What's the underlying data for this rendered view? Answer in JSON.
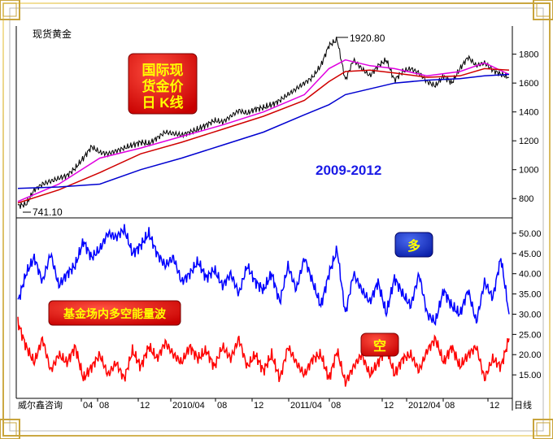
{
  "window": {
    "title": "现货黄金",
    "footer_vendor": "威尔鑫咨询",
    "period_label": "日线"
  },
  "labels": {
    "title_box": [
      "国际现",
      "货金价",
      "日 K线"
    ],
    "period_range": "2009-2012",
    "high_annotation": "1920.80",
    "low_annotation": "741.10",
    "flow_title": "基金场内多空能量波",
    "long_badge": "多",
    "short_badge": "空"
  },
  "colors": {
    "frame_gold": "#c8a43c",
    "price_line": "#000000",
    "ma_magenta": "#e000e0",
    "ma_red": "#d00000",
    "ma_blue": "#0000d0",
    "long_line": "#0000ff",
    "short_line": "#ff0000",
    "badge_red": "#ff0000",
    "badge_blue": "#1030d0",
    "range_text": "#1a1ae6"
  },
  "chart_data": [
    {
      "type": "line",
      "title": "现货黄金",
      "y_ticks": [
        "800",
        "1000",
        "1200",
        "1400",
        "1600",
        "1800"
      ],
      "x_ticks": [
        "04",
        "08",
        "12",
        "2010/04",
        "08",
        "12",
        "2011/04",
        "08",
        "12",
        "2012/04",
        "08",
        "12"
      ],
      "ylim": [
        700,
        1950
      ],
      "series": [
        {
          "name": "price",
          "x": [
            0,
            10,
            20,
            30,
            40,
            50,
            60,
            70,
            80,
            90,
            100,
            110,
            120,
            130,
            140,
            150,
            160,
            170,
            180,
            190,
            200,
            210,
            220,
            230,
            240,
            250,
            260,
            270,
            280,
            290,
            300,
            310,
            320,
            330,
            340,
            350,
            360,
            370,
            380,
            390,
            400,
            410,
            420,
            430,
            440,
            450,
            460,
            470,
            480,
            490,
            500,
            510,
            520,
            530,
            540,
            550,
            560,
            570,
            580,
            590,
            600
          ],
          "values": [
            750,
            760,
            860,
            900,
            920,
            940,
            960,
            1010,
            1080,
            1160,
            1120,
            1110,
            1130,
            1150,
            1170,
            1190,
            1180,
            1220,
            1260,
            1250,
            1240,
            1260,
            1280,
            1310,
            1340,
            1330,
            1370,
            1410,
            1390,
            1420,
            1430,
            1450,
            1480,
            1520,
            1560,
            1600,
            1640,
            1720,
            1860,
            1900,
            1620,
            1760,
            1700,
            1650,
            1720,
            1760,
            1620,
            1680,
            1700,
            1670,
            1610,
            1580,
            1650,
            1600,
            1700,
            1780,
            1720,
            1740,
            1690,
            1660,
            1640
          ]
        },
        {
          "name": "ma-short",
          "x": [
            0,
            50,
            100,
            150,
            200,
            250,
            300,
            350,
            380,
            400,
            430,
            460,
            500,
            540,
            570,
            600
          ],
          "values": [
            780,
            900,
            1080,
            1150,
            1230,
            1310,
            1400,
            1520,
            1700,
            1760,
            1720,
            1700,
            1650,
            1680,
            1740,
            1660
          ]
        },
        {
          "name": "ma-mid",
          "x": [
            0,
            50,
            100,
            150,
            200,
            250,
            300,
            350,
            380,
            400,
            430,
            460,
            500,
            540,
            570,
            600
          ],
          "values": [
            770,
            860,
            980,
            1110,
            1190,
            1280,
            1370,
            1480,
            1610,
            1680,
            1690,
            1670,
            1640,
            1650,
            1700,
            1690
          ]
        },
        {
          "name": "ma-long",
          "x": [
            0,
            50,
            100,
            150,
            200,
            250,
            300,
            350,
            380,
            400,
            430,
            460,
            500,
            540,
            570,
            600
          ],
          "values": [
            870,
            880,
            900,
            1000,
            1080,
            1170,
            1260,
            1380,
            1450,
            1520,
            1560,
            1600,
            1620,
            1630,
            1650,
            1660
          ]
        }
      ]
    },
    {
      "type": "line",
      "y_ticks": [
        "15.00",
        "20.00",
        "25.00",
        "30.00",
        "35.00",
        "40.00",
        "45.00",
        "50.00"
      ],
      "ylim": [
        10,
        53
      ],
      "series": [
        {
          "name": "多",
          "x": [
            0,
            10,
            20,
            30,
            40,
            50,
            60,
            70,
            80,
            90,
            100,
            110,
            120,
            130,
            140,
            150,
            160,
            170,
            180,
            190,
            200,
            210,
            220,
            230,
            240,
            250,
            260,
            270,
            280,
            290,
            300,
            310,
            320,
            330,
            340,
            350,
            360,
            370,
            380,
            390,
            400,
            410,
            420,
            430,
            440,
            450,
            460,
            470,
            480,
            490,
            500,
            510,
            520,
            530,
            540,
            550,
            560,
            570,
            580,
            590,
            600
          ],
          "values": [
            33,
            40,
            44,
            38,
            45,
            37,
            40,
            42,
            48,
            44,
            46,
            50,
            49,
            51,
            45,
            47,
            50,
            45,
            42,
            44,
            38,
            40,
            43,
            39,
            41,
            37,
            40,
            35,
            42,
            38,
            36,
            40,
            33,
            42,
            36,
            44,
            38,
            32,
            40,
            46,
            30,
            40,
            36,
            33,
            38,
            30,
            39,
            35,
            32,
            40,
            30,
            28,
            36,
            32,
            30,
            36,
            28,
            38,
            34,
            44,
            30
          ]
        },
        {
          "name": "空",
          "x": [
            0,
            10,
            20,
            30,
            40,
            50,
            60,
            70,
            80,
            90,
            100,
            110,
            120,
            130,
            140,
            150,
            160,
            170,
            180,
            190,
            200,
            210,
            220,
            230,
            240,
            250,
            260,
            270,
            280,
            290,
            300,
            310,
            320,
            330,
            340,
            350,
            360,
            370,
            380,
            390,
            400,
            410,
            420,
            430,
            440,
            450,
            460,
            470,
            480,
            490,
            500,
            510,
            520,
            530,
            540,
            550,
            560,
            570,
            580,
            590,
            600
          ],
          "values": [
            28,
            22,
            18,
            24,
            16,
            20,
            18,
            22,
            14,
            17,
            20,
            15,
            18,
            14,
            21,
            17,
            22,
            19,
            23,
            20,
            18,
            22,
            19,
            21,
            17,
            22,
            19,
            24,
            17,
            20,
            16,
            20,
            14,
            22,
            18,
            15,
            19,
            20,
            14,
            21,
            13,
            17,
            20,
            15,
            18,
            22,
            15,
            19,
            20,
            16,
            21,
            24,
            18,
            22,
            17,
            20,
            22,
            14,
            19,
            17,
            24
          ]
        }
      ]
    }
  ]
}
